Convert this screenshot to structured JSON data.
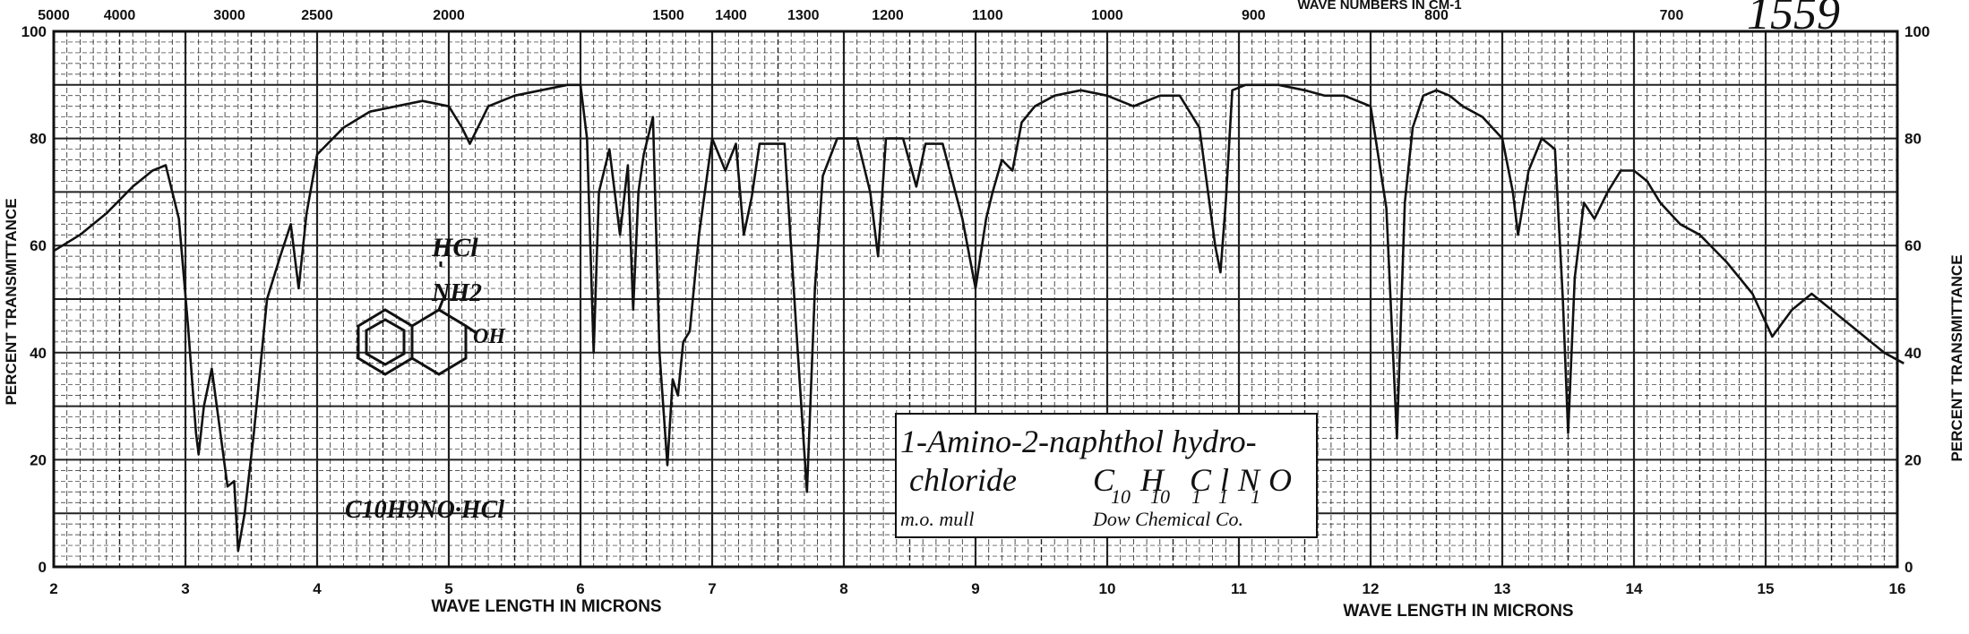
{
  "chart_data": {
    "type": "line",
    "title": "",
    "xlabel": "WAVE LENGTH IN MICRONS",
    "ylabel": "PERCENT TRANSMITTANCE",
    "xlim": [
      2,
      16
    ],
    "ylim": [
      0,
      100
    ],
    "grid": true,
    "top_axis_label": "WAVE NUMBERS IN CM-1",
    "x_ticks": [
      2,
      3,
      4,
      5,
      6,
      7,
      8,
      9,
      10,
      11,
      12,
      13,
      14,
      15,
      16
    ],
    "y_ticks": [
      0,
      20,
      40,
      60,
      80,
      100
    ],
    "wavenumber_ticks": [
      "5000",
      "4000",
      "3000",
      "2500",
      "2000",
      "1500",
      "1400",
      "1300",
      "1200",
      "1100",
      "1000",
      "900",
      "800",
      "700"
    ],
    "wavenumber_values": [
      5000,
      4000,
      3000,
      2500,
      2000,
      1500,
      1400,
      1300,
      1200,
      1100,
      1000,
      900,
      800,
      700
    ],
    "series": [
      {
        "x": [
          2.0,
          2.2,
          2.4,
          2.6,
          2.75,
          2.85,
          2.95,
          3.02,
          3.08,
          3.1,
          3.14,
          3.2,
          3.26,
          3.32,
          3.37,
          3.4,
          3.45,
          3.52,
          3.62,
          3.72,
          3.8,
          3.86,
          3.92,
          4.0,
          4.2,
          4.4,
          4.6,
          4.8,
          5.0,
          5.1,
          5.16,
          5.2,
          5.3,
          5.5,
          5.7,
          5.9,
          6.0,
          6.05,
          6.1,
          6.14,
          6.22,
          6.3,
          6.36,
          6.4,
          6.44,
          6.48,
          6.55,
          6.6,
          6.66,
          6.7,
          6.74,
          6.78,
          6.83,
          6.9,
          7.0,
          7.1,
          7.18,
          7.24,
          7.3,
          7.36,
          7.45,
          7.55,
          7.65,
          7.72,
          7.78,
          7.84,
          7.95,
          8.1,
          8.2,
          8.26,
          8.32,
          8.45,
          8.55,
          8.62,
          8.75,
          8.9,
          9.0,
          9.08,
          9.13,
          9.2,
          9.28,
          9.35,
          9.45,
          9.6,
          9.8,
          10.0,
          10.2,
          10.4,
          10.55,
          10.7,
          10.82,
          10.86,
          10.9,
          10.95,
          11.05,
          11.3,
          11.5,
          11.65,
          11.8,
          12.0,
          12.12,
          12.2,
          12.26,
          12.32,
          12.4,
          12.5,
          12.6,
          12.7,
          12.85,
          13.0,
          13.08,
          13.12,
          13.2,
          13.3,
          13.4,
          13.46,
          13.5,
          13.55,
          13.62,
          13.7,
          13.8,
          13.9,
          14.0,
          14.1,
          14.2,
          14.35,
          14.5,
          14.7,
          14.9,
          15.05,
          15.2,
          15.35,
          15.5,
          15.7,
          15.9,
          16.05
        ],
        "values": [
          59,
          62,
          66,
          71,
          74,
          75,
          65,
          45,
          25,
          21,
          30,
          37,
          26,
          15,
          16,
          3,
          10,
          25,
          50,
          58,
          64,
          52,
          66,
          77,
          82,
          85,
          86,
          87,
          86,
          82,
          79,
          81,
          86,
          88,
          89,
          90,
          90,
          80,
          40,
          70,
          78,
          62,
          75,
          48,
          70,
          77,
          84,
          40,
          19,
          35,
          32,
          42,
          44,
          62,
          80,
          74,
          79,
          62,
          69,
          79,
          79,
          79,
          40,
          14,
          52,
          73,
          80,
          80,
          70,
          58,
          80,
          80,
          71,
          79,
          79,
          65,
          52,
          65,
          70,
          76,
          74,
          83,
          86,
          88,
          89,
          88,
          86,
          88,
          88,
          82,
          60,
          55,
          68,
          89,
          90,
          90,
          89,
          88,
          88,
          86,
          67,
          24,
          68,
          82,
          88,
          89,
          88,
          86,
          84,
          80,
          70,
          62,
          74,
          80,
          78,
          50,
          25,
          54,
          68,
          65,
          70,
          74,
          74,
          72,
          68,
          64,
          62,
          57,
          51,
          43,
          48,
          51,
          48,
          44,
          40,
          38
        ]
      }
    ],
    "annotations": {
      "compound_name_line1": "1-Amino-2-naphthol hydro-",
      "compound_name_line2": "chloride",
      "formula_main": "C H ClNO",
      "formula_subs": [
        "10",
        "10",
        "1",
        "1",
        "1"
      ],
      "sample_prep": "m.o. mull",
      "source": "Dow Chemical Co.",
      "structure_formula": "C10H9NO·HCl",
      "structure_hcl": "HCl",
      "structure_nh2": "NH2",
      "structure_oh": "OH",
      "spectrum_number": "1559"
    },
    "colors": {
      "line": "#111111",
      "grid": "#222222",
      "background": "#ffffff"
    }
  }
}
